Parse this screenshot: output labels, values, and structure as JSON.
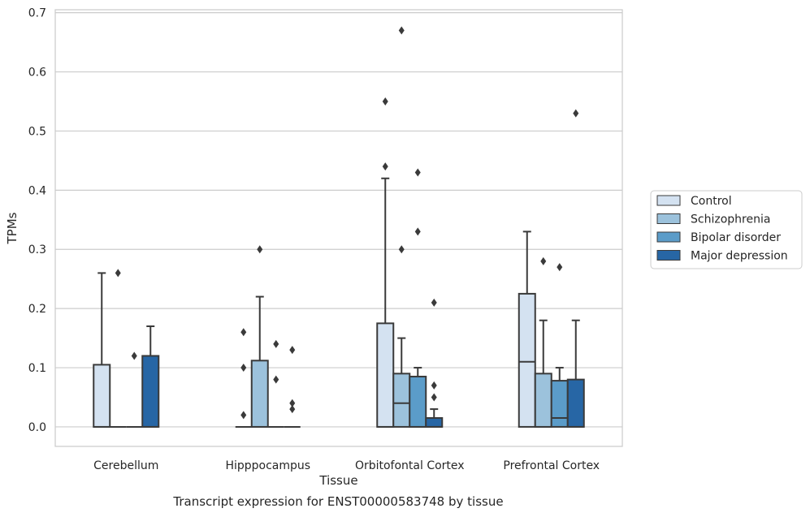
{
  "caption": "Transcript expression for ENST00000583748 by tissue",
  "chart_data": {
    "type": "box",
    "title": "",
    "xlabel": "Tissue",
    "ylabel": "TPMs",
    "ylim": [
      -0.033,
      0.705
    ],
    "yticks": [
      0.0,
      0.1,
      0.2,
      0.3,
      0.4,
      0.5,
      0.6,
      0.7
    ],
    "ytick_labels": [
      "0.0",
      "0.1",
      "0.2",
      "0.3",
      "0.4",
      "0.5",
      "0.6",
      "0.7"
    ],
    "grid": "horizontal",
    "legend_position": "right",
    "categories": [
      "Cerebellum",
      "Hipppocampus",
      "Orbitofontal Cortex",
      "Prefrontal Cortex"
    ],
    "series": [
      {
        "name": "Control",
        "color": "#d4e2f1",
        "boxes": [
          {
            "q1": 0,
            "median": 0,
            "q3": 0.105,
            "whisker_low": 0,
            "whisker_high": 0.26,
            "outliers": []
          },
          {
            "q1": 0,
            "median": 0,
            "q3": 0,
            "whisker_low": 0,
            "whisker_high": 0,
            "outliers": [
              0.16,
              0.1,
              0.02
            ]
          },
          {
            "q1": 0,
            "median": 0,
            "q3": 0.175,
            "whisker_low": 0,
            "whisker_high": 0.42,
            "outliers": [
              0.55,
              0.44
            ]
          },
          {
            "q1": 0,
            "median": 0.11,
            "q3": 0.225,
            "whisker_low": 0,
            "whisker_high": 0.33,
            "outliers": []
          }
        ]
      },
      {
        "name": "Schizophrenia",
        "color": "#9cc2dc",
        "boxes": [
          {
            "q1": 0,
            "median": 0,
            "q3": 0,
            "whisker_low": 0,
            "whisker_high": 0,
            "outliers": [
              0.26
            ]
          },
          {
            "q1": 0,
            "median": 0,
            "q3": 0.112,
            "whisker_low": 0,
            "whisker_high": 0.22,
            "outliers": [
              0.3
            ]
          },
          {
            "q1": 0,
            "median": 0.04,
            "q3": 0.09,
            "whisker_low": 0,
            "whisker_high": 0.15,
            "outliers": [
              0.67,
              0.3
            ]
          },
          {
            "q1": 0,
            "median": 0,
            "q3": 0.09,
            "whisker_low": 0,
            "whisker_high": 0.18,
            "outliers": [
              0.28
            ]
          }
        ]
      },
      {
        "name": "Bipolar disorder",
        "color": "#5b9cc9",
        "boxes": [
          {
            "q1": 0,
            "median": 0,
            "q3": 0,
            "whisker_low": 0,
            "whisker_high": 0,
            "outliers": [
              0.12
            ]
          },
          {
            "q1": 0,
            "median": 0,
            "q3": 0,
            "whisker_low": 0,
            "whisker_high": 0,
            "outliers": [
              0.14,
              0.08
            ]
          },
          {
            "q1": 0,
            "median": 0,
            "q3": 0.085,
            "whisker_low": 0,
            "whisker_high": 0.1,
            "outliers": [
              0.43,
              0.33
            ]
          },
          {
            "q1": 0,
            "median": 0.015,
            "q3": 0.078,
            "whisker_low": 0,
            "whisker_high": 0.1,
            "outliers": [
              0.27
            ]
          }
        ]
      },
      {
        "name": "Major depression",
        "color": "#2766a5",
        "boxes": [
          {
            "q1": 0,
            "median": 0,
            "q3": 0.12,
            "whisker_low": 0,
            "whisker_high": 0.17,
            "outliers": []
          },
          {
            "q1": 0,
            "median": 0,
            "q3": 0,
            "whisker_low": 0,
            "whisker_high": 0,
            "outliers": [
              0.13,
              0.04,
              0.03
            ]
          },
          {
            "q1": 0,
            "median": 0,
            "q3": 0.015,
            "whisker_low": 0,
            "whisker_high": 0.03,
            "outliers": [
              0.21,
              0.07,
              0.05
            ]
          },
          {
            "q1": 0,
            "median": 0,
            "q3": 0.08,
            "whisker_low": 0,
            "whisker_high": 0.18,
            "outliers": [
              0.53
            ]
          }
        ]
      }
    ]
  }
}
